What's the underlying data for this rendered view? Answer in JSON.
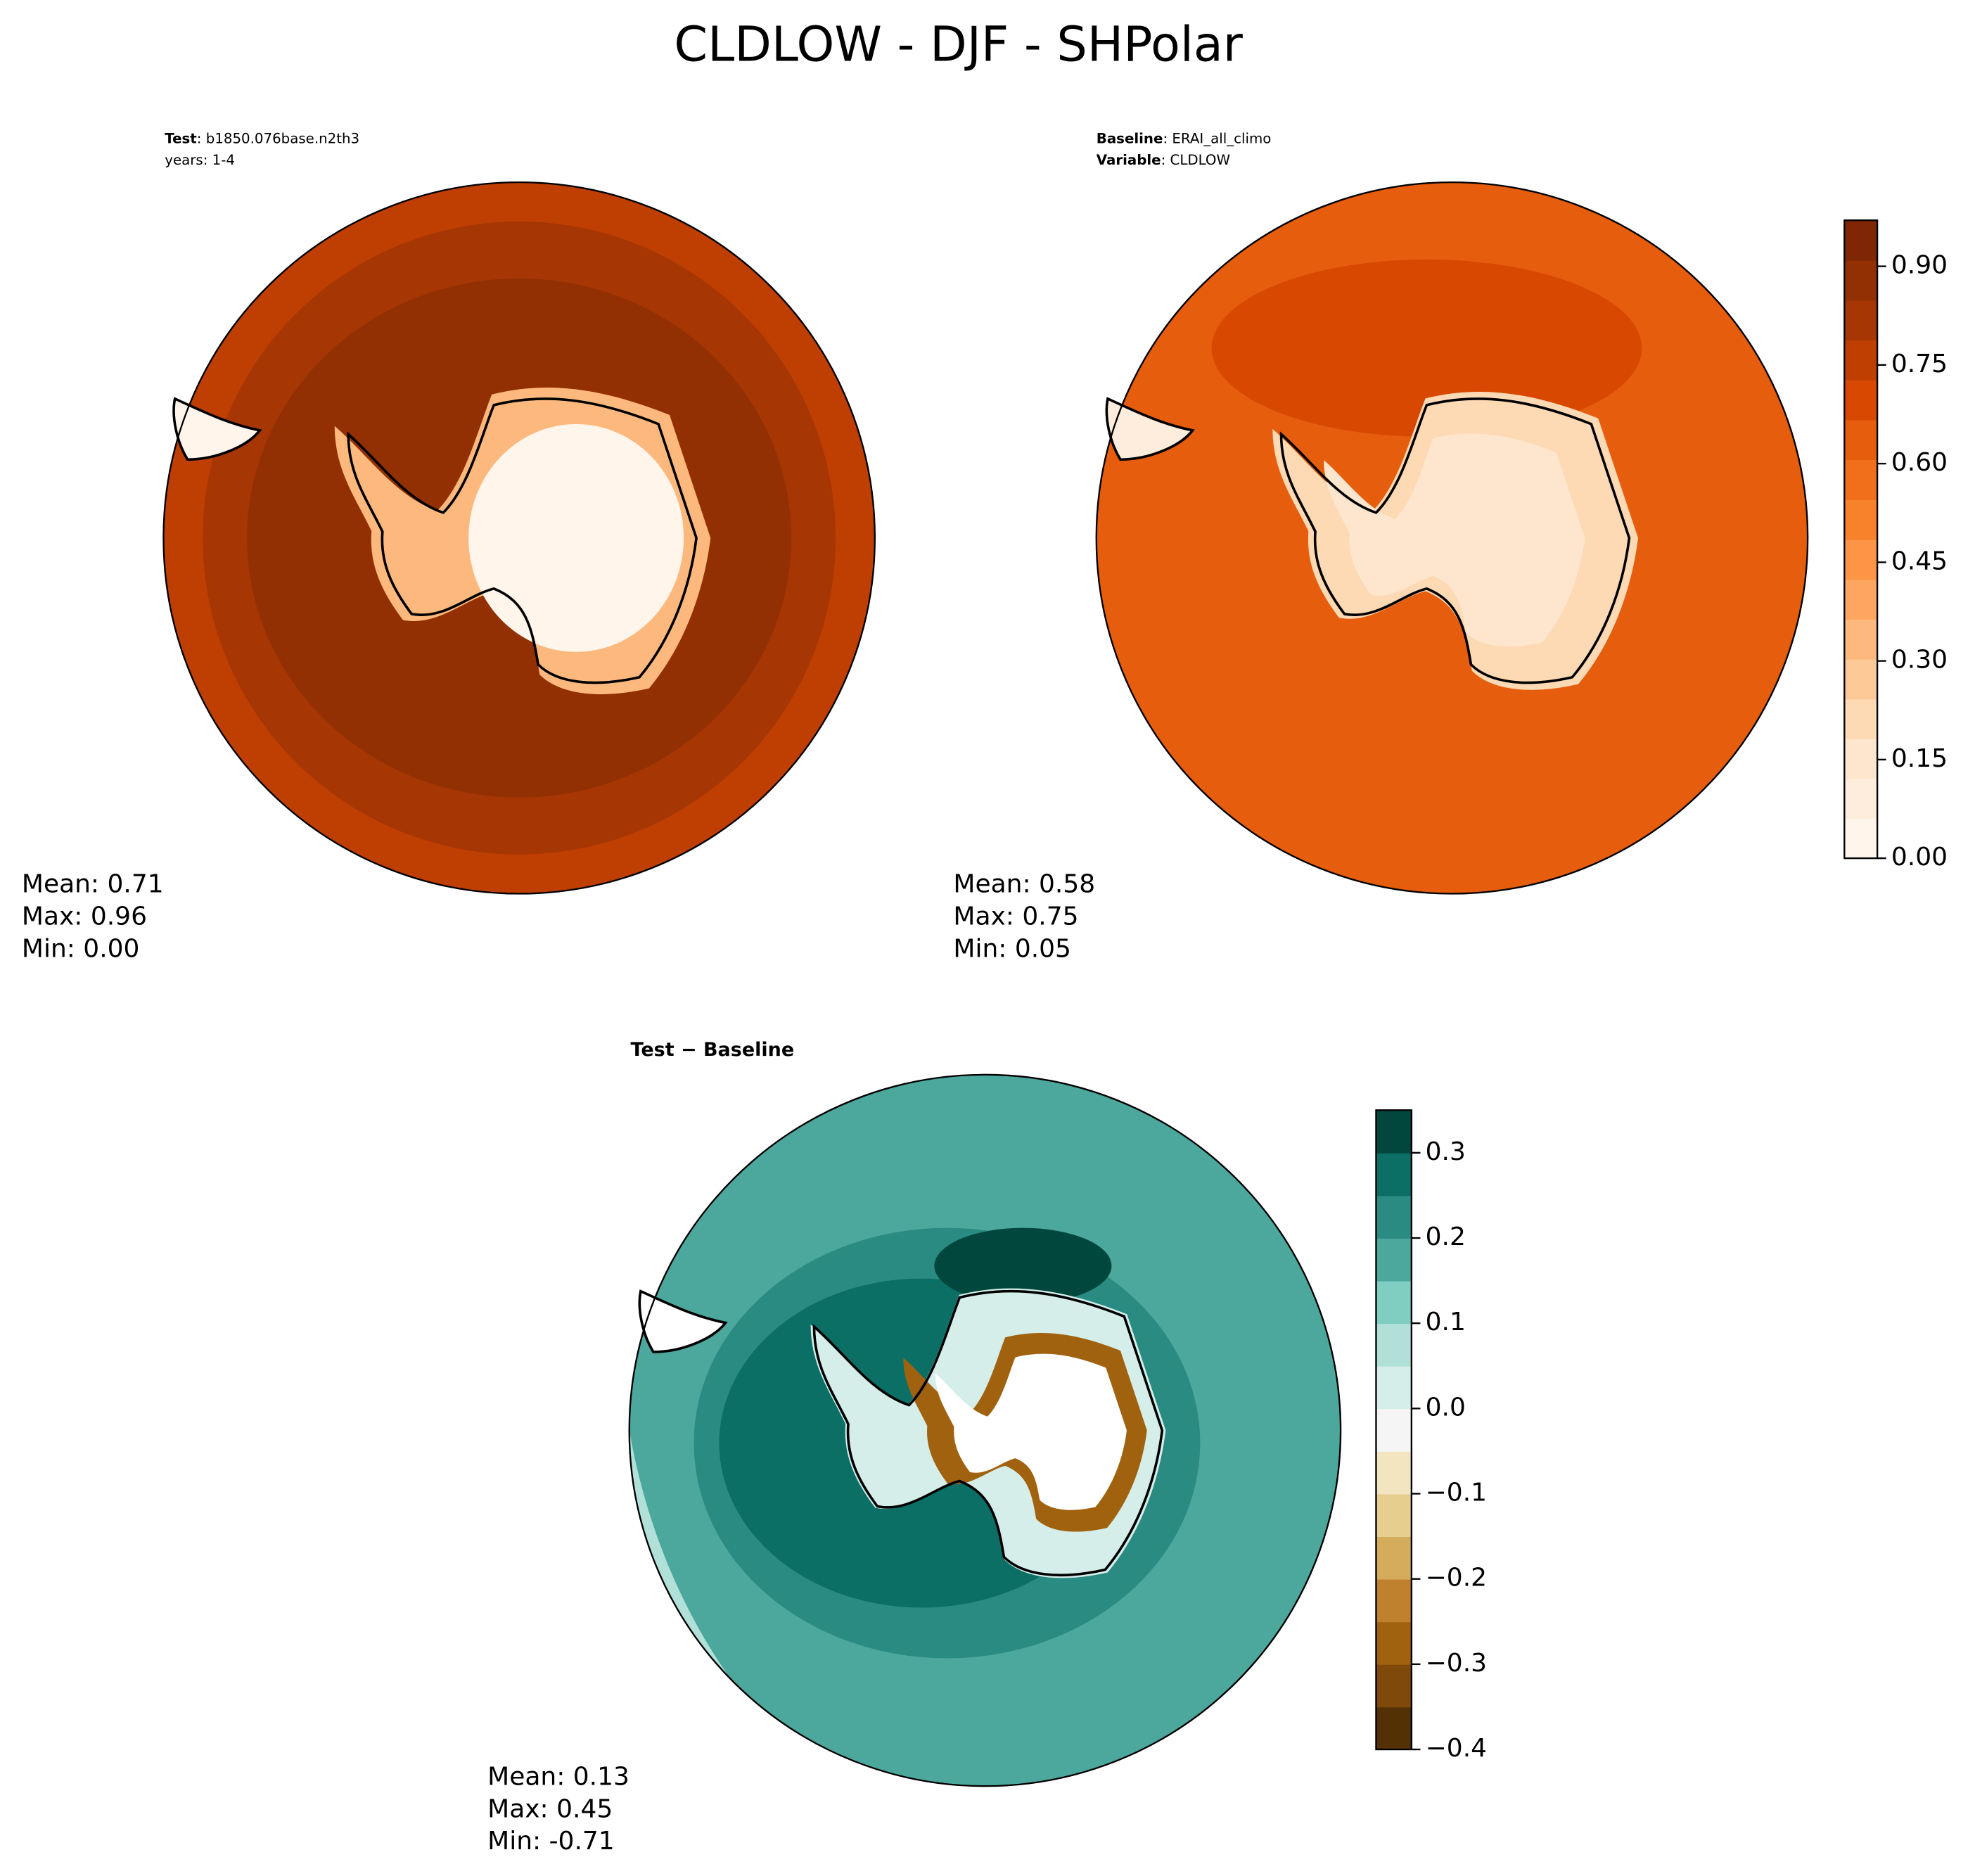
{
  "title": "CLDLOW - DJF - SHPolar",
  "panels": [
    {
      "header": [
        {
          "label": "Test",
          "text": ": b1850.076base.n2th3"
        },
        {
          "text": "years: 1-4"
        }
      ],
      "stats": [
        "Mean:  0.71",
        "Max:  0.96",
        "Min:  0.00"
      ]
    },
    {
      "header": [
        {
          "label": "Baseline",
          "text": ": ERAI_all_climo"
        },
        {
          "label": "Variable",
          "text": ": CLDLOW"
        }
      ],
      "stats": [
        "Mean:  0.58",
        "Max:  0.75",
        "Min:  0.05"
      ]
    },
    {
      "header": [
        {
          "label": "Test − Baseline"
        }
      ],
      "stats": [
        "Mean:  0.13",
        "Max:  0.45",
        "Min: -0.71"
      ]
    }
  ],
  "colorbars": [
    {
      "lim": [
        0,
        0.97
      ],
      "ticks": [
        {
          "value": 0,
          "label": "0.00"
        },
        {
          "value": 0.15,
          "label": "0.15"
        },
        {
          "value": 0.3,
          "label": "0.30"
        },
        {
          "value": 0.45,
          "label": "0.45"
        },
        {
          "value": 0.6,
          "label": "0.60"
        },
        {
          "value": 0.75,
          "label": "0.75"
        },
        {
          "value": 0.9,
          "label": "0.90"
        }
      ],
      "colors": [
        "#fff5eb",
        "#feeddc",
        "#fee6ce",
        "#fdd9b4",
        "#fdc997",
        "#fdb97d",
        "#fda660",
        "#fd9446",
        "#f8812c",
        "#f16f1a",
        "#e55d0d",
        "#d84801",
        "#bf3f02",
        "#a63603",
        "#923003",
        "#7f2704"
      ]
    },
    {
      "lim": [
        -0.4,
        0.35
      ],
      "ticks": [
        {
          "value": -0.4,
          "label": "−0.4"
        },
        {
          "value": -0.3,
          "label": "−0.3"
        },
        {
          "value": -0.2,
          "label": "−0.2"
        },
        {
          "value": -0.1,
          "label": "−0.1"
        },
        {
          "value": 0,
          "label": "0.0"
        },
        0.1,
        0.2,
        0.3
      ],
      "colors": [
        "#543005",
        "#7f4909",
        "#a0620f",
        "#bf812d",
        "#d4ac5c",
        "#e6ce8f",
        "#f3e5c0",
        "#f5f5f5",
        "#d5eeea",
        "#b0e0d8",
        "#80cdc1",
        "#4ca79c",
        "#2a8b82",
        "#0b6f65",
        "#01473d"
      ]
    }
  ]
}
